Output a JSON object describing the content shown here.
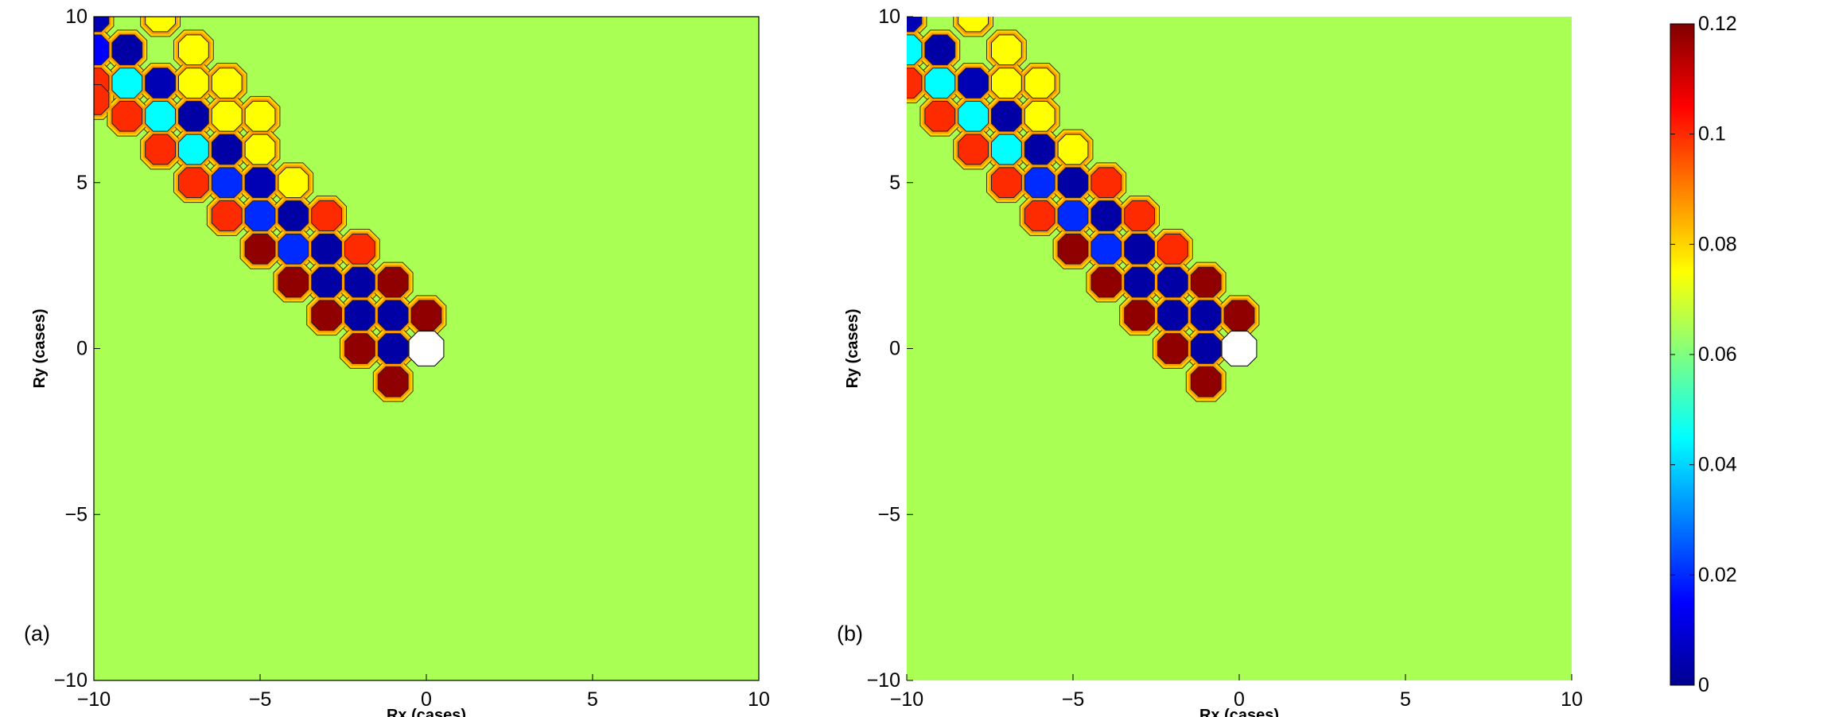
{
  "colormap": [
    "#00008f",
    "#0000ff",
    "#0080ff",
    "#00ffff",
    "#80ff80",
    "#ffff00",
    "#ff8000",
    "#ff0000",
    "#800000"
  ],
  "chart_data": [
    {
      "type": "heatmap",
      "panel_label": "(a)",
      "xlabel": "Rx (cases)",
      "ylabel": "Ry (cases)",
      "xlim": [
        -10,
        10
      ],
      "ylim": [
        -10,
        10
      ],
      "xticks": [
        -10,
        -5,
        0,
        5,
        10
      ],
      "yticks": [
        -10,
        -5,
        0,
        5,
        10
      ],
      "xtick_labels": [
        "−10",
        "−5",
        "0",
        "5",
        "10"
      ],
      "ytick_labels": [
        "−10",
        "−5",
        "0",
        "5",
        "10"
      ],
      "background_value": 0.065,
      "empty_cells": [
        {
          "x": 0,
          "y": 0
        }
      ],
      "cells": [
        {
          "x": -10,
          "y": 10,
          "v": 0.005
        },
        {
          "x": -8,
          "y": 10,
          "v": 0.075
        },
        {
          "x": -10,
          "y": 9,
          "v": 0.015
        },
        {
          "x": -9,
          "y": 9,
          "v": 0.003
        },
        {
          "x": -7,
          "y": 9,
          "v": 0.075
        },
        {
          "x": -9,
          "y": 8,
          "v": 0.045
        },
        {
          "x": -8,
          "y": 8,
          "v": 0.005
        },
        {
          "x": -7,
          "y": 8,
          "v": 0.075
        },
        {
          "x": -6,
          "y": 8,
          "v": 0.075
        },
        {
          "x": -10,
          "y": 8,
          "v": 0.1
        },
        {
          "x": -10,
          "y": 7.5,
          "v": 0.1
        },
        {
          "x": -8,
          "y": 7,
          "v": 0.045
        },
        {
          "x": -7,
          "y": 7,
          "v": 0.003
        },
        {
          "x": -6,
          "y": 7,
          "v": 0.075
        },
        {
          "x": -5,
          "y": 7,
          "v": 0.075
        },
        {
          "x": -9,
          "y": 7,
          "v": 0.1
        },
        {
          "x": -7,
          "y": 6,
          "v": 0.045
        },
        {
          "x": -6,
          "y": 6,
          "v": 0.003
        },
        {
          "x": -5,
          "y": 6,
          "v": 0.075
        },
        {
          "x": -8,
          "y": 6,
          "v": 0.1
        },
        {
          "x": -6,
          "y": 5,
          "v": 0.02
        },
        {
          "x": -5,
          "y": 5,
          "v": 0.005
        },
        {
          "x": -4,
          "y": 5,
          "v": 0.075
        },
        {
          "x": -7,
          "y": 5,
          "v": 0.1
        },
        {
          "x": -5,
          "y": 4,
          "v": 0.02
        },
        {
          "x": -4,
          "y": 4,
          "v": 0.003
        },
        {
          "x": -3,
          "y": 4,
          "v": 0.1
        },
        {
          "x": -6,
          "y": 4,
          "v": 0.1
        },
        {
          "x": -4,
          "y": 3,
          "v": 0.02
        },
        {
          "x": -3,
          "y": 3,
          "v": 0.003
        },
        {
          "x": -2,
          "y": 3,
          "v": 0.1
        },
        {
          "x": -5,
          "y": 3,
          "v": 0.118
        },
        {
          "x": -3,
          "y": 2,
          "v": 0.003
        },
        {
          "x": -2,
          "y": 2,
          "v": 0.003
        },
        {
          "x": -1,
          "y": 2,
          "v": 0.118
        },
        {
          "x": -4,
          "y": 2,
          "v": 0.118
        },
        {
          "x": -2,
          "y": 1,
          "v": 0.003
        },
        {
          "x": -1,
          "y": 1,
          "v": 0.003
        },
        {
          "x": 0,
          "y": 1,
          "v": 0.118
        },
        {
          "x": -3,
          "y": 1,
          "v": 0.118
        },
        {
          "x": -1,
          "y": 0,
          "v": 0.003
        },
        {
          "x": -2,
          "y": 0,
          "v": 0.118
        },
        {
          "x": -1,
          "y": -1,
          "v": 0.118
        }
      ]
    },
    {
      "type": "heatmap",
      "panel_label": "(b)",
      "xlabel": "Rx (cases)",
      "ylabel": "Ry (cases)",
      "xlim": [
        -10,
        10
      ],
      "ylim": [
        -10,
        10
      ],
      "xticks": [
        -10,
        -5,
        0,
        5,
        10
      ],
      "yticks": [
        -10,
        -5,
        0,
        5,
        10
      ],
      "xtick_labels": [
        "−10",
        "−5",
        "0",
        "5",
        "10"
      ],
      "ytick_labels": [
        "−10",
        "−5",
        "0",
        "5",
        "10"
      ],
      "background_value": 0.065,
      "empty_cells": [
        {
          "x": 0,
          "y": 0
        }
      ],
      "cells": [
        {
          "x": -10,
          "y": 10,
          "v": 0.005
        },
        {
          "x": -8,
          "y": 10,
          "v": 0.075
        },
        {
          "x": -10,
          "y": 9,
          "v": 0.045
        },
        {
          "x": -9,
          "y": 9,
          "v": 0.003
        },
        {
          "x": -7,
          "y": 9,
          "v": 0.075
        },
        {
          "x": -9,
          "y": 8,
          "v": 0.045
        },
        {
          "x": -8,
          "y": 8,
          "v": 0.005
        },
        {
          "x": -7,
          "y": 8,
          "v": 0.075
        },
        {
          "x": -6,
          "y": 8,
          "v": 0.075
        },
        {
          "x": -10,
          "y": 8,
          "v": 0.1
        },
        {
          "x": -8,
          "y": 7,
          "v": 0.045
        },
        {
          "x": -7,
          "y": 7,
          "v": 0.003
        },
        {
          "x": -6,
          "y": 7,
          "v": 0.075
        },
        {
          "x": -9,
          "y": 7,
          "v": 0.1
        },
        {
          "x": -7,
          "y": 6,
          "v": 0.045
        },
        {
          "x": -6,
          "y": 6,
          "v": 0.003
        },
        {
          "x": -5,
          "y": 6,
          "v": 0.075
        },
        {
          "x": -8,
          "y": 6,
          "v": 0.1
        },
        {
          "x": -6,
          "y": 5,
          "v": 0.02
        },
        {
          "x": -5,
          "y": 5,
          "v": 0.003
        },
        {
          "x": -4,
          "y": 5,
          "v": 0.1
        },
        {
          "x": -7,
          "y": 5,
          "v": 0.1
        },
        {
          "x": -5,
          "y": 4,
          "v": 0.02
        },
        {
          "x": -4,
          "y": 4,
          "v": 0.003
        },
        {
          "x": -3,
          "y": 4,
          "v": 0.1
        },
        {
          "x": -6,
          "y": 4,
          "v": 0.1
        },
        {
          "x": -4,
          "y": 3,
          "v": 0.02
        },
        {
          "x": -3,
          "y": 3,
          "v": 0.003
        },
        {
          "x": -2,
          "y": 3,
          "v": 0.1
        },
        {
          "x": -5,
          "y": 3,
          "v": 0.118
        },
        {
          "x": -3,
          "y": 2,
          "v": 0.003
        },
        {
          "x": -2,
          "y": 2,
          "v": 0.003
        },
        {
          "x": -1,
          "y": 2,
          "v": 0.118
        },
        {
          "x": -4,
          "y": 2,
          "v": 0.118
        },
        {
          "x": -2,
          "y": 1,
          "v": 0.003
        },
        {
          "x": -1,
          "y": 1,
          "v": 0.003
        },
        {
          "x": 0,
          "y": 1,
          "v": 0.118
        },
        {
          "x": -3,
          "y": 1,
          "v": 0.118
        },
        {
          "x": -1,
          "y": 0,
          "v": 0.003
        },
        {
          "x": -2,
          "y": 0,
          "v": 0.118
        },
        {
          "x": -1,
          "y": -1,
          "v": 0.118
        }
      ]
    }
  ],
  "colorbar": {
    "min": 0,
    "max": 0.12,
    "ticks": [
      0,
      0.02,
      0.04,
      0.06,
      0.08,
      0.1,
      0.12
    ],
    "tick_labels": [
      "0",
      "0.02",
      "0.04",
      "0.06",
      "0.08",
      "0.1",
      "0.12"
    ]
  }
}
